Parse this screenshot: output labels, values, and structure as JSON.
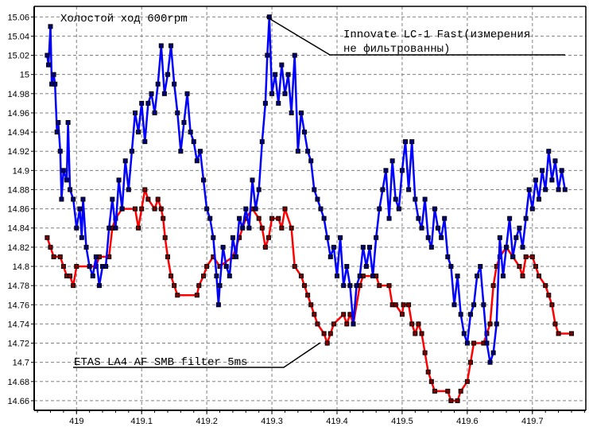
{
  "chart_data": {
    "type": "line",
    "title": "Холостой ход 600rpm",
    "xlabel": "",
    "ylabel": "",
    "xlim": [
      418.935,
      419.782
    ],
    "ylim": [
      14.65,
      15.071
    ],
    "grid": true,
    "x_ticks": [
      "419",
      "419.1",
      "419.2",
      "419.3",
      "419.4",
      "419.5",
      "419.6",
      "419.7"
    ],
    "y_ticks": [
      "14.66",
      "14.68",
      "14.7",
      "14.72",
      "14.74",
      "14.76",
      "14.78",
      "14.8",
      "14.82",
      "14.84",
      "14.86",
      "14.88",
      "14.9",
      "14.92",
      "14.94",
      "14.96",
      "14.98",
      "15",
      "15.02",
      "15.04",
      "15.06"
    ],
    "annotations": [
      {
        "text_line1": "Innovate LC-1 Fast(измерения",
        "text_line2": "не фильтрованны)",
        "points_to": [
          419.296,
          15.06
        ]
      },
      {
        "text_line1": "ETAS LA4 AF SMB filter 5ms",
        "points_to": [
          419.385,
          14.72
        ]
      }
    ],
    "series": [
      {
        "color": "#0000ff",
        "marker": "square",
        "x": [
          418.955,
          418.957,
          418.96,
          418.962,
          418.965,
          418.967,
          418.97,
          418.972,
          418.975,
          418.977,
          418.98,
          418.985,
          418.987,
          418.99,
          418.995,
          419.0,
          419.005,
          419.008,
          419.01,
          419.015,
          419.02,
          419.025,
          419.03,
          419.035,
          419.04,
          419.045,
          419.05,
          419.055,
          419.06,
          419.065,
          419.07,
          419.075,
          419.08,
          419.085,
          419.09,
          419.095,
          419.1,
          419.105,
          419.11,
          419.115,
          419.12,
          419.125,
          419.13,
          419.135,
          419.14,
          419.145,
          419.15,
          419.155,
          419.16,
          419.165,
          419.17,
          419.175,
          419.18,
          419.185,
          419.19,
          419.195,
          419.2,
          419.205,
          419.21,
          419.215,
          419.218,
          419.22,
          419.225,
          419.23,
          419.235,
          419.24,
          419.245,
          419.25,
          419.255,
          419.26,
          419.265,
          419.27,
          419.275,
          419.28,
          419.285,
          419.29,
          419.293,
          419.296,
          419.3,
          419.305,
          419.31,
          419.315,
          419.32,
          419.325,
          419.33,
          419.335,
          419.34,
          419.345,
          419.35,
          419.355,
          419.36,
          419.365,
          419.37,
          419.375,
          419.38,
          419.385,
          419.39,
          419.395,
          419.4,
          419.405,
          419.41,
          419.415,
          419.42,
          419.425,
          419.43,
          419.435,
          419.44,
          419.445,
          419.45,
          419.455,
          419.46,
          419.465,
          419.47,
          419.475,
          419.48,
          419.485,
          419.49,
          419.495,
          419.5,
          419.505,
          419.51,
          419.515,
          419.52,
          419.525,
          419.53,
          419.535,
          419.54,
          419.545,
          419.55,
          419.555,
          419.56,
          419.565,
          419.57,
          419.575,
          419.58,
          419.585,
          419.59,
          419.595,
          419.6,
          419.605,
          419.61,
          419.615,
          419.62,
          419.625,
          419.63,
          419.635,
          419.64,
          419.645,
          419.65,
          419.655,
          419.66,
          419.665,
          419.67,
          419.675,
          419.68,
          419.685,
          419.69,
          419.695,
          419.7,
          419.705,
          419.71,
          419.715,
          419.72,
          419.725,
          419.73,
          419.735,
          419.74,
          419.745,
          419.75
        ],
        "y": [
          15.02,
          15.01,
          15.05,
          14.99,
          15.0,
          14.99,
          14.94,
          14.95,
          14.92,
          14.87,
          14.9,
          14.89,
          14.95,
          14.88,
          14.87,
          14.84,
          14.86,
          14.83,
          14.87,
          14.82,
          14.8,
          14.79,
          14.81,
          14.78,
          14.8,
          14.8,
          14.84,
          14.87,
          14.84,
          14.89,
          14.86,
          14.91,
          14.88,
          14.92,
          14.96,
          14.94,
          14.97,
          14.93,
          14.97,
          14.98,
          14.96,
          14.99,
          15.03,
          14.98,
          15.0,
          15.03,
          14.99,
          14.96,
          14.92,
          14.95,
          14.98,
          14.94,
          14.93,
          14.91,
          14.92,
          14.89,
          14.86,
          14.85,
          14.83,
          14.79,
          14.76,
          14.78,
          14.82,
          14.8,
          14.79,
          14.83,
          14.81,
          14.85,
          14.84,
          14.86,
          14.84,
          14.89,
          14.86,
          14.88,
          14.93,
          14.97,
          15.02,
          15.06,
          14.98,
          15.0,
          14.97,
          15.01,
          14.98,
          15.0,
          14.96,
          15.02,
          14.92,
          14.96,
          14.94,
          14.92,
          14.91,
          14.88,
          14.87,
          14.86,
          14.85,
          14.83,
          14.81,
          14.82,
          14.79,
          14.83,
          14.78,
          14.8,
          14.78,
          14.74,
          14.78,
          14.79,
          14.82,
          14.8,
          14.82,
          14.79,
          14.83,
          14.86,
          14.88,
          14.9,
          14.85,
          14.91,
          14.87,
          14.86,
          14.9,
          14.93,
          14.88,
          14.93,
          14.87,
          14.85,
          14.84,
          14.87,
          14.83,
          14.82,
          14.86,
          14.84,
          14.83,
          14.85,
          14.81,
          14.8,
          14.76,
          14.79,
          14.75,
          14.73,
          14.72,
          14.75,
          14.76,
          14.79,
          14.8,
          14.76,
          14.72,
          14.7,
          14.71,
          14.74,
          14.83,
          14.79,
          14.82,
          14.85,
          14.81,
          14.83,
          14.84,
          14.82,
          14.85,
          14.88,
          14.86,
          14.89,
          14.87,
          14.9,
          14.88,
          14.92,
          14.89,
          14.91,
          14.88,
          14.9,
          14.88
        ]
      },
      {
        "color": "#ff0000",
        "marker": "square",
        "x": [
          418.955,
          418.96,
          418.965,
          418.975,
          418.98,
          418.985,
          418.99,
          418.995,
          419.0,
          419.03,
          419.035,
          419.05,
          419.055,
          419.06,
          419.07,
          419.09,
          419.095,
          419.1,
          419.105,
          419.11,
          419.12,
          419.125,
          419.13,
          419.133,
          419.136,
          419.14,
          419.145,
          419.15,
          419.155,
          419.185,
          419.188,
          419.195,
          419.2,
          419.21,
          419.22,
          419.24,
          419.25,
          419.26,
          419.27,
          419.28,
          419.285,
          419.29,
          419.295,
          419.3,
          419.31,
          419.315,
          419.32,
          419.33,
          419.335,
          419.345,
          419.35,
          419.355,
          419.36,
          419.365,
          419.37,
          419.38,
          419.385,
          419.39,
          419.395,
          419.41,
          419.415,
          419.42,
          419.425,
          419.435,
          419.44,
          419.46,
          419.465,
          419.48,
          419.485,
          419.49,
          419.5,
          419.502,
          419.51,
          419.515,
          419.52,
          419.525,
          419.53,
          419.535,
          419.54,
          419.545,
          419.55,
          419.57,
          419.575,
          419.585,
          419.59,
          419.6,
          419.605,
          419.61,
          419.625,
          419.63,
          419.635,
          419.64,
          419.645,
          419.65,
          419.66,
          419.67,
          419.68,
          419.685,
          419.69,
          419.7,
          419.705,
          419.71,
          419.72,
          419.725,
          419.73,
          419.735,
          419.74,
          419.76
        ],
        "y": [
          14.83,
          14.82,
          14.81,
          14.81,
          14.8,
          14.79,
          14.79,
          14.78,
          14.8,
          14.8,
          14.81,
          14.81,
          14.84,
          14.85,
          14.86,
          14.86,
          14.84,
          14.86,
          14.88,
          14.87,
          14.86,
          14.87,
          14.86,
          14.85,
          14.83,
          14.81,
          14.79,
          14.78,
          14.77,
          14.77,
          14.78,
          14.79,
          14.8,
          14.81,
          14.8,
          14.81,
          14.83,
          14.85,
          14.86,
          14.85,
          14.84,
          14.82,
          14.83,
          14.85,
          14.85,
          14.84,
          14.86,
          14.84,
          14.8,
          14.79,
          14.78,
          14.77,
          14.76,
          14.75,
          14.74,
          14.73,
          14.72,
          14.73,
          14.74,
          14.75,
          14.74,
          14.75,
          14.74,
          14.78,
          14.79,
          14.79,
          14.78,
          14.78,
          14.76,
          14.76,
          14.75,
          14.76,
          14.76,
          14.74,
          14.73,
          14.74,
          14.73,
          14.71,
          14.69,
          14.68,
          14.67,
          14.67,
          14.66,
          14.66,
          14.67,
          14.68,
          14.7,
          14.72,
          14.72,
          14.73,
          14.74,
          14.78,
          14.8,
          14.81,
          14.82,
          14.81,
          14.8,
          14.79,
          14.81,
          14.81,
          14.8,
          14.79,
          14.78,
          14.77,
          14.76,
          14.74,
          14.73,
          14.73
        ]
      }
    ]
  }
}
